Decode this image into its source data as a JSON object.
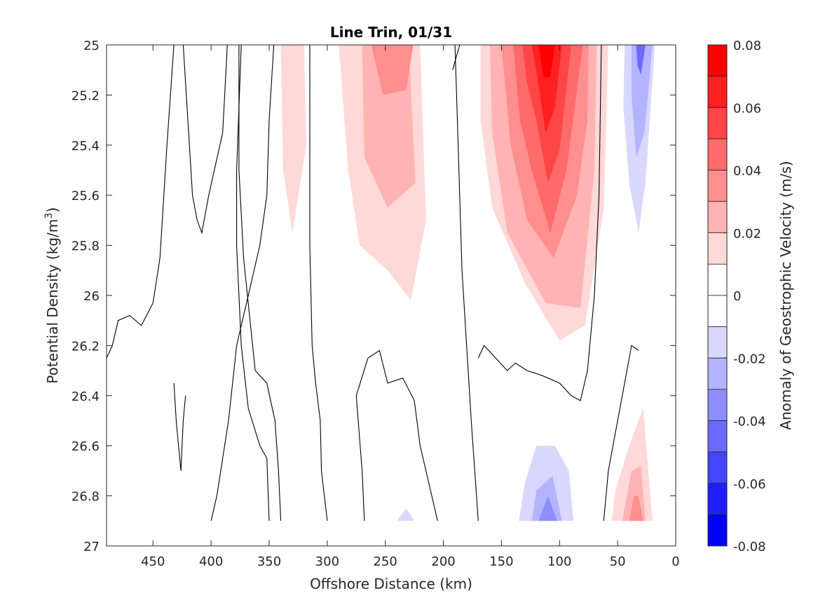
{
  "chart_data": {
    "type": "contour",
    "title": "Line Trin, 01/31",
    "xlabel": "Offshore Distance (km)",
    "ylabel_main": "Potential Density (kg/m",
    "ylabel_sup": "3",
    "ylabel_close": ")",
    "xlim": [
      490,
      0
    ],
    "x_reversed": true,
    "ylim": [
      25,
      27
    ],
    "y_reversed": true,
    "xticks": [
      450,
      400,
      350,
      300,
      250,
      200,
      150,
      100,
      50,
      0
    ],
    "xtick_labels": [
      "450",
      "400",
      "350",
      "300",
      "250",
      "200",
      "150",
      "100",
      "50",
      "0"
    ],
    "yticks": [
      25,
      25.2,
      25.4,
      25.6,
      25.8,
      26,
      26.2,
      26.4,
      26.6,
      26.8,
      27
    ],
    "ytick_labels": [
      "25",
      "25.2",
      "25.4",
      "25.6",
      "25.8",
      "26",
      "26.2",
      "26.4",
      "26.6",
      "26.8",
      "27"
    ],
    "colorbar": {
      "label": "Anomaly of Geostrophic Velocity (m/s)",
      "limits": [
        -0.08,
        0.08
      ],
      "ticks": [
        0.08,
        0.06,
        0.04,
        0.02,
        0,
        -0.02,
        -0.04,
        -0.06,
        -0.08
      ],
      "tick_labels": [
        "0.08",
        "0.06",
        "0.04",
        "0.02",
        "0",
        "-0.02",
        "-0.04",
        "-0.06",
        "-0.08"
      ],
      "bins": [
        {
          "lo": 0.07,
          "hi": 0.08,
          "color": "#ff0000"
        },
        {
          "lo": 0.06,
          "hi": 0.07,
          "color": "#ff2020"
        },
        {
          "lo": 0.05,
          "hi": 0.06,
          "color": "#ff4545"
        },
        {
          "lo": 0.04,
          "hi": 0.05,
          "color": "#ff6a6a"
        },
        {
          "lo": 0.03,
          "hi": 0.04,
          "color": "#ff8e8e"
        },
        {
          "lo": 0.02,
          "hi": 0.03,
          "color": "#ffb3b3"
        },
        {
          "lo": 0.01,
          "hi": 0.02,
          "color": "#ffd8d8"
        },
        {
          "lo": 0.0,
          "hi": 0.01,
          "color": "#ffffff"
        },
        {
          "lo": -0.01,
          "hi": 0.0,
          "color": "#ffffff"
        },
        {
          "lo": -0.02,
          "hi": -0.01,
          "color": "#d8d8ff"
        },
        {
          "lo": -0.03,
          "hi": -0.02,
          "color": "#b3b3ff"
        },
        {
          "lo": -0.04,
          "hi": -0.03,
          "color": "#8e8eff"
        },
        {
          "lo": -0.05,
          "hi": -0.04,
          "color": "#6a6aff"
        },
        {
          "lo": -0.06,
          "hi": -0.05,
          "color": "#4545ff"
        },
        {
          "lo": -0.07,
          "hi": -0.06,
          "color": "#2020ff"
        },
        {
          "lo": -0.08,
          "hi": -0.07,
          "color": "#0000ff"
        }
      ]
    },
    "filled_regions": [
      {
        "level": -0.01,
        "points": [
          [
            490,
            25
          ],
          [
            445,
            25
          ],
          [
            460,
            25.33
          ],
          [
            490,
            25.02
          ]
        ]
      },
      {
        "level": -0.01,
        "points": [
          [
            400,
            25
          ],
          [
            385,
            25
          ],
          [
            408,
            25.17
          ],
          [
            402,
            25.05
          ]
        ]
      },
      {
        "level": 0.01,
        "points": [
          [
            340,
            25
          ],
          [
            320,
            25
          ],
          [
            318,
            25.4
          ],
          [
            330,
            25.75
          ],
          [
            338,
            25.5
          ]
        ]
      },
      {
        "level": 0.01,
        "points": [
          [
            290,
            25
          ],
          [
            220,
            25
          ],
          [
            215,
            25.7
          ],
          [
            228,
            26.02
          ],
          [
            248,
            25.9
          ],
          [
            272,
            25.8
          ],
          [
            282,
            25.5
          ]
        ]
      },
      {
        "level": 0.02,
        "points": [
          [
            270,
            25
          ],
          [
            230,
            25
          ],
          [
            224,
            25.55
          ],
          [
            248,
            25.65
          ],
          [
            268,
            25.45
          ]
        ]
      },
      {
        "level": 0.03,
        "points": [
          [
            262,
            25
          ],
          [
            226,
            25
          ],
          [
            232,
            25.18
          ],
          [
            252,
            25.2
          ]
        ]
      },
      {
        "level": 0.01,
        "points": [
          [
            168,
            25
          ],
          [
            58,
            25
          ],
          [
            62,
            25.65
          ],
          [
            78,
            26.12
          ],
          [
            100,
            26.18
          ],
          [
            130,
            25.95
          ],
          [
            158,
            25.65
          ],
          [
            168,
            25.3
          ]
        ]
      },
      {
        "level": 0.02,
        "points": [
          [
            160,
            25
          ],
          [
            68,
            25
          ],
          [
            70,
            25.5
          ],
          [
            82,
            26.05
          ],
          [
            112,
            26.03
          ],
          [
            145,
            25.75
          ],
          [
            158,
            25.35
          ]
        ]
      },
      {
        "level": 0.03,
        "points": [
          [
            150,
            25
          ],
          [
            75,
            25
          ],
          [
            76,
            25.3
          ],
          [
            85,
            25.6
          ],
          [
            105,
            25.85
          ],
          [
            128,
            25.7
          ],
          [
            142,
            25.4
          ]
        ]
      },
      {
        "level": 0.04,
        "points": [
          [
            140,
            25
          ],
          [
            80,
            25
          ],
          [
            94,
            25.5
          ],
          [
            108,
            25.75
          ],
          [
            124,
            25.5
          ],
          [
            134,
            25.3
          ]
        ]
      },
      {
        "level": 0.05,
        "points": [
          [
            132,
            25
          ],
          [
            90,
            25
          ],
          [
            100,
            25.42
          ],
          [
            110,
            25.55
          ],
          [
            120,
            25.3
          ],
          [
            128,
            25.15
          ]
        ]
      },
      {
        "level": 0.06,
        "points": [
          [
            124,
            25
          ],
          [
            98,
            25
          ],
          [
            104,
            25.25
          ],
          [
            112,
            25.35
          ],
          [
            120,
            25.1
          ]
        ]
      },
      {
        "level": 0.07,
        "points": [
          [
            118,
            25
          ],
          [
            104,
            25
          ],
          [
            108,
            25.13
          ],
          [
            114,
            25.13
          ]
        ]
      },
      {
        "level": -0.01,
        "points": [
          [
            55,
            25
          ],
          [
            15,
            25
          ],
          [
            20,
            25.75
          ],
          [
            40,
            26.2
          ],
          [
            48,
            26.45
          ],
          [
            58,
            26.42
          ],
          [
            60,
            25.8
          ]
        ]
      },
      {
        "level": -0.02,
        "points": [
          [
            44,
            25
          ],
          [
            18,
            25
          ],
          [
            26,
            25.55
          ],
          [
            32,
            25.75
          ],
          [
            40,
            25.55
          ],
          [
            45,
            25.25
          ]
        ]
      },
      {
        "level": -0.03,
        "points": [
          [
            38,
            25
          ],
          [
            20,
            25
          ],
          [
            27,
            25.35
          ],
          [
            34,
            25.45
          ],
          [
            38,
            25.2
          ]
        ]
      },
      {
        "level": -0.05,
        "points": [
          [
            34,
            25
          ],
          [
            26,
            25
          ],
          [
            30,
            25.12
          ],
          [
            33,
            25.08
          ]
        ]
      },
      {
        "level": 0.01,
        "points": [
          [
            55,
            26.9
          ],
          [
            20,
            26.9
          ],
          [
            28,
            26.45
          ],
          [
            40,
            26.6
          ],
          [
            52,
            26.78
          ]
        ]
      },
      {
        "level": 0.02,
        "points": [
          [
            46,
            26.9
          ],
          [
            26,
            26.9
          ],
          [
            30,
            26.68
          ],
          [
            38,
            26.7
          ]
        ]
      },
      {
        "level": 0.03,
        "points": [
          [
            40,
            26.9
          ],
          [
            28,
            26.9
          ],
          [
            32,
            26.8
          ],
          [
            36,
            26.8
          ]
        ]
      },
      {
        "level": -0.01,
        "points": [
          [
            272,
            26.9
          ],
          [
            200,
            26.9
          ],
          [
            220,
            26.75
          ],
          [
            238,
            26.65
          ],
          [
            258,
            26.55
          ],
          [
            270,
            26.7
          ]
        ]
      },
      {
        "level": -0.02,
        "points": [
          [
            240,
            26.9
          ],
          [
            225,
            26.9
          ],
          [
            232,
            26.85
          ]
        ]
      },
      {
        "level": -0.01,
        "points": [
          [
            335,
            26.9
          ],
          [
            325,
            26.9
          ],
          [
            332,
            26.85
          ]
        ]
      },
      {
        "level": -0.01,
        "points": [
          [
            165,
            26.9
          ],
          [
            75,
            26.9
          ],
          [
            80,
            26.6
          ],
          [
            96,
            26.45
          ],
          [
            118,
            26.45
          ],
          [
            140,
            26.75
          ]
        ]
      },
      {
        "level": -0.02,
        "points": [
          [
            135,
            26.9
          ],
          [
            88,
            26.9
          ],
          [
            92,
            26.7
          ],
          [
            104,
            26.6
          ],
          [
            120,
            26.6
          ],
          [
            130,
            26.75
          ]
        ]
      },
      {
        "level": -0.03,
        "points": [
          [
            124,
            26.9
          ],
          [
            98,
            26.9
          ],
          [
            106,
            26.72
          ],
          [
            120,
            26.78
          ]
        ]
      },
      {
        "level": -0.04,
        "points": [
          [
            118,
            26.9
          ],
          [
            102,
            26.9
          ],
          [
            110,
            26.8
          ]
        ]
      },
      {
        "level": -0.01,
        "points": [
          [
            82,
            26.9
          ],
          [
            62,
            26.9
          ],
          [
            62,
            26.82
          ],
          [
            82,
            26.82
          ]
        ]
      }
    ],
    "contour_lines": [
      [
        [
          490,
          26.25
        ],
        [
          485,
          26.2
        ],
        [
          480,
          26.1
        ],
        [
          470,
          26.08
        ],
        [
          460,
          26.12
        ],
        [
          450,
          26.03
        ],
        [
          444,
          25.85
        ],
        [
          438,
          25.4
        ],
        [
          432,
          25.0
        ]
      ],
      [
        [
          424,
          25.0
        ],
        [
          420,
          25.3
        ],
        [
          416,
          25.6
        ],
        [
          412,
          25.7
        ],
        [
          408,
          25.75
        ],
        [
          402,
          25.6
        ],
        [
          390,
          25.35
        ],
        [
          386,
          25.0
        ]
      ],
      [
        [
          432,
          26.35
        ],
        [
          430,
          26.5
        ],
        [
          428,
          26.6
        ],
        [
          426,
          26.7
        ],
        [
          424,
          26.5
        ],
        [
          422,
          26.4
        ]
      ],
      [
        [
          400,
          26.9
        ],
        [
          395,
          26.8
        ],
        [
          385,
          26.5
        ],
        [
          378,
          26.2
        ],
        [
          368,
          26.0
        ],
        [
          358,
          25.8
        ],
        [
          352,
          25.6
        ],
        [
          350,
          25.3
        ],
        [
          346,
          25.0
        ]
      ],
      [
        [
          350,
          26.9
        ],
        [
          352,
          26.65
        ],
        [
          358,
          26.6
        ],
        [
          368,
          26.45
        ],
        [
          374,
          26.2
        ],
        [
          378,
          25.8
        ],
        [
          378,
          25.5
        ],
        [
          374,
          25.0
        ]
      ],
      [
        [
          340,
          26.9
        ],
        [
          342,
          26.7
        ],
        [
          345,
          26.5
        ],
        [
          352,
          26.35
        ],
        [
          362,
          26.3
        ],
        [
          372,
          25.85
        ],
        [
          376,
          25.5
        ],
        [
          376,
          25.0
        ]
      ],
      [
        [
          300,
          26.9
        ],
        [
          305,
          26.7
        ],
        [
          306,
          26.5
        ],
        [
          310,
          26.35
        ],
        [
          313,
          26.2
        ],
        [
          315,
          25.8
        ],
        [
          315,
          25.0
        ]
      ],
      [
        [
          268,
          26.9
        ],
        [
          270,
          26.7
        ],
        [
          275,
          26.4
        ],
        [
          265,
          26.25
        ],
        [
          255,
          26.22
        ],
        [
          248,
          26.35
        ],
        [
          235,
          26.33
        ],
        [
          225,
          26.42
        ],
        [
          220,
          26.6
        ],
        [
          210,
          26.8
        ],
        [
          205,
          26.9
        ]
      ],
      [
        [
          192,
          25.1
        ],
        [
          186,
          25.0
        ]
      ],
      [
        [
          170,
          26.9
        ],
        [
          176,
          26.5
        ],
        [
          180,
          26.2
        ],
        [
          184,
          25.9
        ],
        [
          186,
          25.6
        ],
        [
          188,
          25.3
        ],
        [
          190,
          25.0
        ]
      ],
      [
        [
          170,
          26.25
        ],
        [
          165,
          26.2
        ],
        [
          155,
          26.25
        ],
        [
          145,
          26.3
        ],
        [
          138,
          26.27
        ],
        [
          128,
          26.3
        ],
        [
          115,
          26.32
        ],
        [
          100,
          26.35
        ],
        [
          90,
          26.4
        ],
        [
          82,
          26.42
        ],
        [
          76,
          26.3
        ],
        [
          70,
          26.0
        ],
        [
          66,
          25.6
        ],
        [
          64,
          25.0
        ]
      ],
      [
        [
          62,
          26.9
        ],
        [
          58,
          26.7
        ],
        [
          52,
          26.55
        ],
        [
          44,
          26.35
        ],
        [
          38,
          26.2
        ],
        [
          32,
          26.22
        ]
      ]
    ]
  }
}
